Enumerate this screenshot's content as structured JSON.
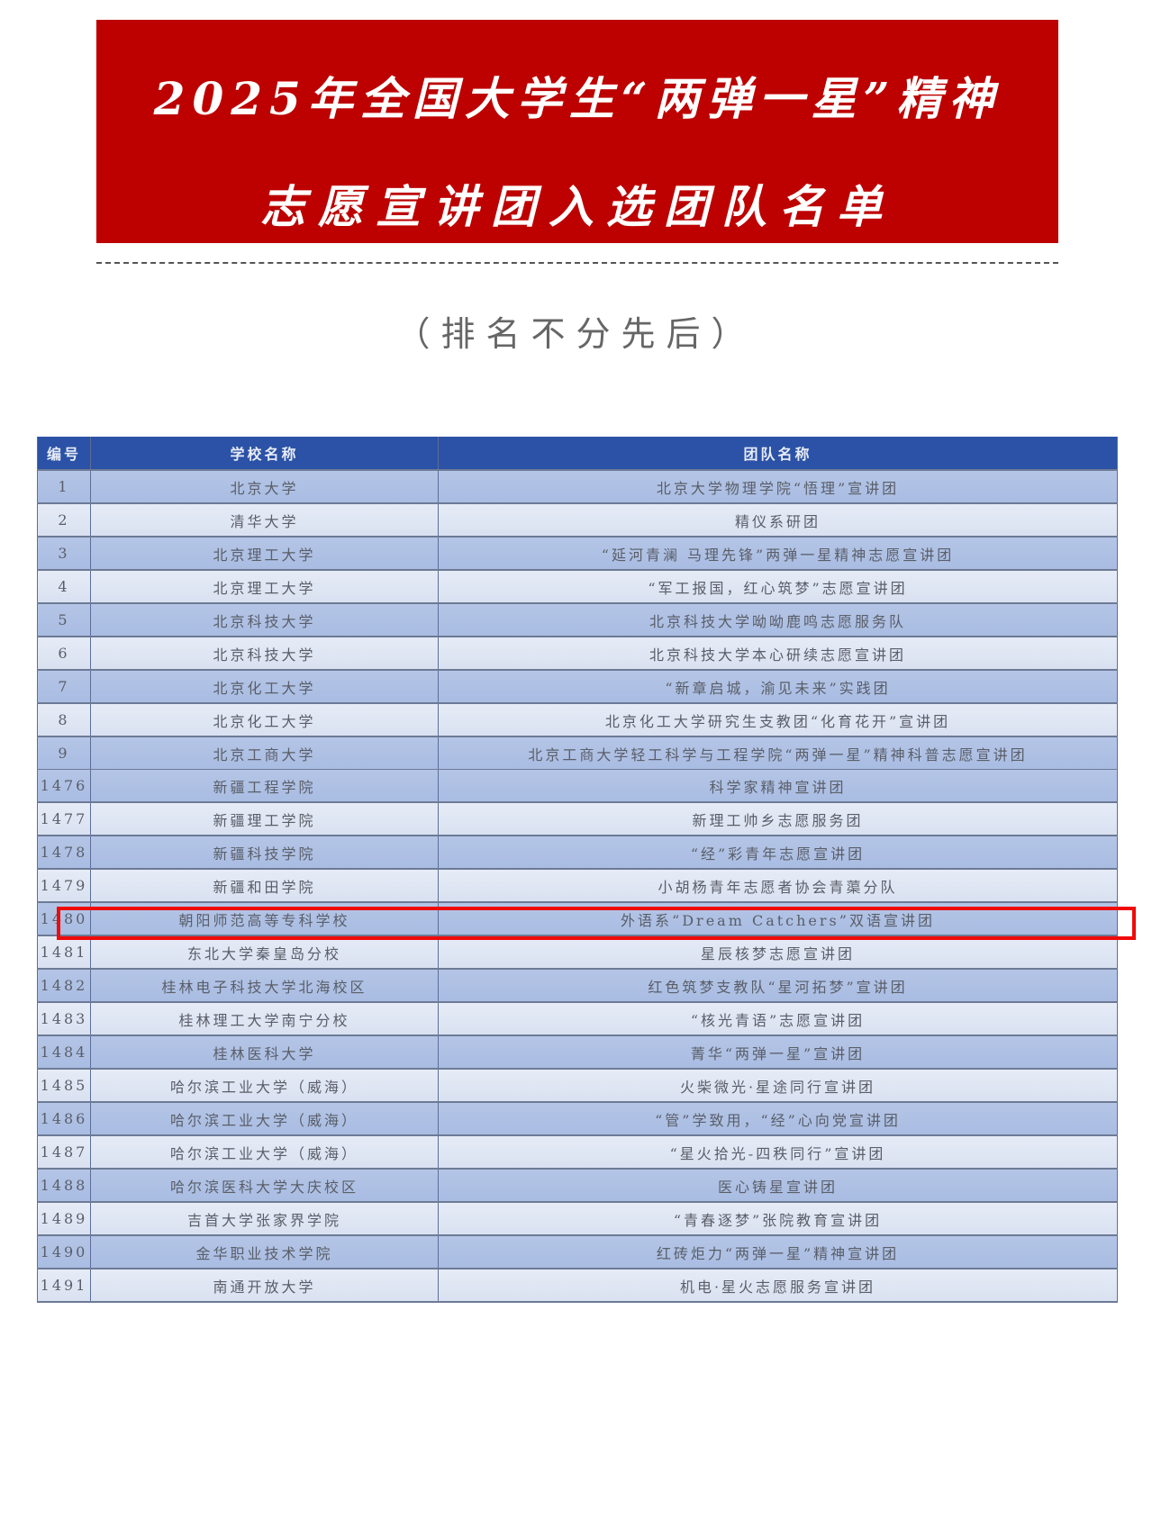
{
  "title": {
    "line1": "2025年全国大学生“两弹一星”精神",
    "line2": "志愿宣讲团入选团队名单"
  },
  "subtitle": "（排名不分先后）",
  "colors": {
    "banner": "#bd0000",
    "header": "#2b52a6",
    "highlight": "#f00a0a"
  },
  "table": {
    "headers": [
      "编号",
      "学校名称",
      "团队名称"
    ],
    "rows_top": [
      [
        "1",
        "北京大学",
        "北京大学物理学院“悟理”宣讲团"
      ],
      [
        "2",
        "清华大学",
        "精仪系研团"
      ],
      [
        "3",
        "北京理工大学",
        "“延河青澜 马理先锋”两弹一星精神志愿宣讲团"
      ],
      [
        "4",
        "北京理工大学",
        "“军工报国，红心筑梦”志愿宣讲团"
      ],
      [
        "5",
        "北京科技大学",
        "北京科技大学呦呦鹿鸣志愿服务队"
      ],
      [
        "6",
        "北京科技大学",
        "北京科技大学本心研续志愿宣讲团"
      ],
      [
        "7",
        "北京化工大学",
        "“新章启城，渝见未来”实践团"
      ],
      [
        "8",
        "北京化工大学",
        "北京化工大学研究生支教团“化育花开”宣讲团"
      ],
      [
        "9",
        "北京工商大学",
        "北京工商大学轻工科学与工程学院“两弹一星”精神科普志愿宣讲团"
      ]
    ],
    "rows_bottom": [
      [
        "1476",
        "新疆工程学院",
        "科学家精神宣讲团"
      ],
      [
        "1477",
        "新疆理工学院",
        "新理工帅乡志愿服务团"
      ],
      [
        "1478",
        "新疆科技学院",
        "“经”彩青年志愿宣讲团"
      ],
      [
        "1479",
        "新疆和田学院",
        "小胡杨青年志愿者协会青蕖分队"
      ],
      [
        "1480",
        "朝阳师范高等专科学校",
        "外语系“Dream Catchers”双语宣讲团"
      ],
      [
        "1481",
        "东北大学秦皇岛分校",
        "星辰核梦志愿宣讲团"
      ],
      [
        "1482",
        "桂林电子科技大学北海校区",
        "红色筑梦支教队“星河拓梦”宣讲团"
      ],
      [
        "1483",
        "桂林理工大学南宁分校",
        "“核光青语”志愿宣讲团"
      ],
      [
        "1484",
        "桂林医科大学",
        "菁华“两弹一星”宣讲团"
      ],
      [
        "1485",
        "哈尔滨工业大学（威海）",
        "火柴微光·星途同行宣讲团"
      ],
      [
        "1486",
        "哈尔滨工业大学（威海）",
        "“管”学致用，“经”心向党宣讲团"
      ],
      [
        "1487",
        "哈尔滨工业大学（威海）",
        "“星火拾光-四秩同行”宣讲团"
      ],
      [
        "1488",
        "哈尔滨医科大学大庆校区",
        "医心铸星宣讲团"
      ],
      [
        "1489",
        "吉首大学张家界学院",
        "“青春逐梦”张院教育宣讲团"
      ],
      [
        "1490",
        "金华职业技术学院",
        "红砖炬力“两弹一星”精神宣讲团"
      ],
      [
        "1491",
        "南通开放大学",
        "机电·星火志愿服务宣讲团"
      ]
    ]
  }
}
